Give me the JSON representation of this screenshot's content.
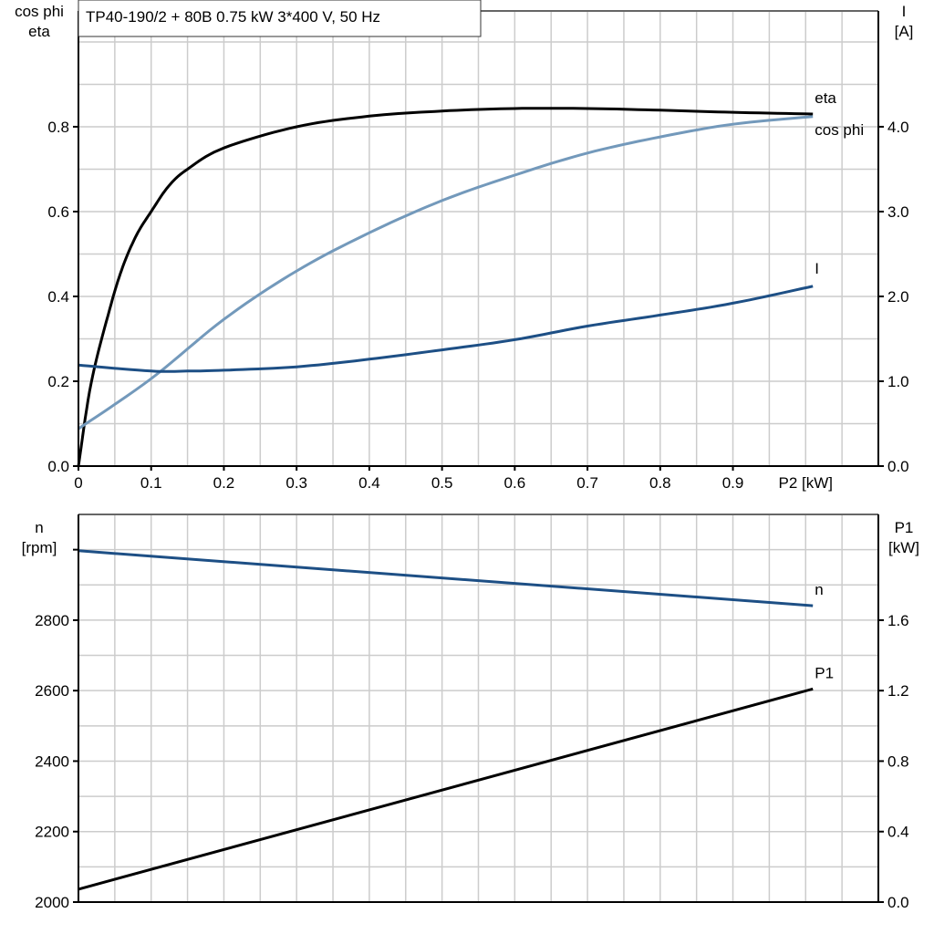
{
  "title": "TP40-190/2 + 80B   0.75 kW   3*400 V, 50 Hz",
  "colors": {
    "eta": "#000000",
    "cos_phi": "#7399bb",
    "I": "#1d4f85",
    "n": "#1d4f85",
    "P1": "#000000",
    "grid": "#cccccc"
  },
  "chart_data": [
    {
      "type": "line",
      "title": "TP40-190/2 + 80B   0.75 kW   3*400 V, 50 Hz",
      "xlabel": "P2 [kW]",
      "ylabel_left": [
        "cos phi",
        "eta"
      ],
      "ylabel_right": [
        "I",
        "[A]"
      ],
      "xlim": [
        0,
        1.1
      ],
      "ylim_left": [
        0,
        1.073
      ],
      "ylim_right": [
        0,
        5.365
      ],
      "x_ticks": [
        "0",
        "0.1",
        "0.2",
        "0.3",
        "0.4",
        "0.5",
        "0.6",
        "0.7",
        "0.8",
        "0.9"
      ],
      "y_left_ticks": [
        "0.0",
        "0.2",
        "0.4",
        "0.6",
        "0.8"
      ],
      "y_right_ticks": [
        "0.0",
        "1.0",
        "2.0",
        "3.0",
        "4.0"
      ],
      "grid": true,
      "series": [
        {
          "name": "eta",
          "axis": "left",
          "x": [
            0,
            0.0175,
            0.043,
            0.061,
            0.08,
            0.1,
            0.124,
            0.15,
            0.2,
            0.3,
            0.4,
            0.5,
            0.6,
            0.7,
            0.8,
            0.9,
            1.01
          ],
          "y": [
            0,
            0.196,
            0.37,
            0.47,
            0.545,
            0.6,
            0.66,
            0.7,
            0.75,
            0.8,
            0.825,
            0.837,
            0.843,
            0.843,
            0.839,
            0.834,
            0.83
          ]
        },
        {
          "name": "cos phi",
          "axis": "left",
          "x": [
            0,
            0.1,
            0.2,
            0.3,
            0.4,
            0.5,
            0.6,
            0.7,
            0.8,
            0.9,
            1.01
          ],
          "y": [
            0.088,
            0.206,
            0.346,
            0.46,
            0.55,
            0.626,
            0.686,
            0.738,
            0.776,
            0.806,
            0.824
          ]
        },
        {
          "name": "I",
          "axis": "right",
          "x": [
            0,
            0.1,
            0.15,
            0.2,
            0.3,
            0.4,
            0.5,
            0.6,
            0.7,
            0.8,
            0.9,
            1.01
          ],
          "y": [
            1.19,
            1.12,
            1.12,
            1.13,
            1.17,
            1.26,
            1.37,
            1.49,
            1.65,
            1.78,
            1.92,
            2.12
          ]
        }
      ]
    },
    {
      "type": "line",
      "ylabel_left": [
        "n",
        "[rpm]"
      ],
      "ylabel_right": [
        "P1",
        "[kW]"
      ],
      "xlim": [
        0,
        1.1
      ],
      "ylim_left": [
        2000,
        3100
      ],
      "ylim_right": [
        0,
        2.2
      ],
      "y_left_ticks": [
        "2000",
        "2200",
        "2400",
        "2600",
        "2800"
      ],
      "y_right_ticks": [
        "0.0",
        "0.4",
        "0.8",
        "1.2",
        "1.6"
      ],
      "grid": true,
      "series": [
        {
          "name": "n",
          "axis": "left",
          "x": [
            0,
            1.01
          ],
          "y": [
            2997,
            2841
          ]
        },
        {
          "name": "P1",
          "axis": "right",
          "x": [
            0,
            1.01
          ],
          "y": [
            0.073,
            1.21
          ]
        }
      ]
    }
  ]
}
